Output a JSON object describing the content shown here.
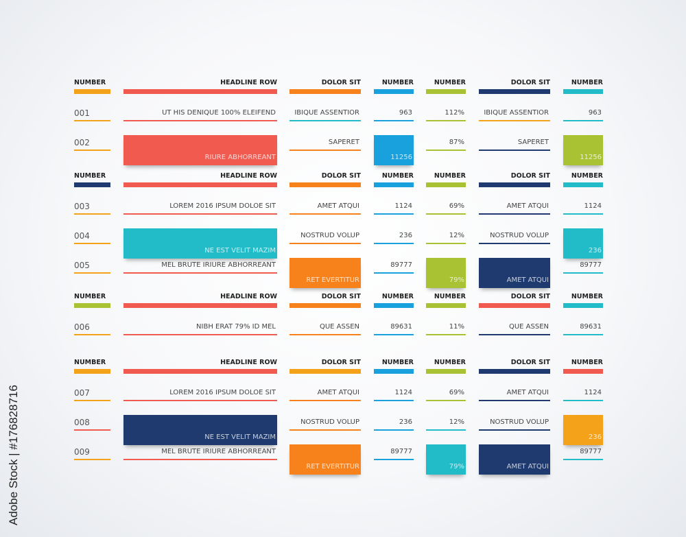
{
  "side_label": "Adobe Stock | #176828716",
  "colors": {
    "orange": "#f5a21b",
    "red": "#f05a4f",
    "blue": "#19a1dd",
    "green": "#a8c234",
    "navy": "#1e3a6e",
    "cyan": "#22bcc9",
    "deeporange": "#f7821b"
  },
  "sections": [
    {
      "headers": [
        "NUMBER",
        "HEADLINE ROW",
        "DOLOR SIT",
        "NUMBER",
        "NUMBER",
        "DOLOR SIT",
        "NUMBER"
      ],
      "header_colors": [
        "orange",
        "red",
        "deeporange",
        "blue",
        "green",
        "navy",
        "cyan"
      ],
      "rows": [
        {
          "cells": [
            "001",
            "UT HIS DENIQUE 100% ELEIFEND",
            "IBIQUE ASSENTIOR",
            "963",
            "112%",
            "IBIQUE ASSENTIOR",
            "963"
          ],
          "line_colors": [
            "orange",
            "red",
            "cyan",
            "blue",
            "green",
            "orange",
            "cyan"
          ]
        },
        {
          "cells": [
            "002",
            "RIURE ABHORREANT",
            "SAPERET",
            "11256",
            "87%",
            "SAPERET",
            "11256"
          ],
          "line_colors": [
            "orange",
            "red",
            "deeporange",
            "blue",
            "green",
            "navy",
            "green"
          ]
        }
      ]
    },
    {
      "headers": [
        "NUMBER",
        "HEADLINE ROW",
        "DOLOR SIT",
        "NUMBER",
        "NUMBER",
        "DOLOR SIT",
        "NUMBER"
      ],
      "header_colors": [
        "navy",
        "red",
        "deeporange",
        "blue",
        "green",
        "navy",
        "cyan"
      ],
      "rows": [
        {
          "cells": [
            "003",
            "LOREM 2016 IPSUM DOLOE SIT",
            "AMET ATQUI",
            "1124",
            "69%",
            "AMET ATQUI",
            "1124"
          ],
          "line_colors": [
            "orange",
            "red",
            "deeporange",
            "blue",
            "green",
            "navy",
            "cyan"
          ]
        },
        {
          "cells": [
            "004",
            "NE EST VELIT MAZIM",
            "NOSTRUD VOLUP",
            "236",
            "12%",
            "NOSTRUD VOLUP",
            "236"
          ],
          "line_colors": [
            "orange",
            "cyan",
            "deeporange",
            "blue",
            "green",
            "navy",
            "cyan"
          ]
        },
        {
          "cells": [
            "005",
            "MEL BRUTE IRIURE ABHORREANT",
            "RET EVERTITUR",
            "89777",
            "79%",
            "AMET ATQUI",
            "89777"
          ],
          "line_colors": [
            "orange",
            "red",
            "deeporange",
            "blue",
            "green",
            "navy",
            "cyan"
          ]
        }
      ]
    },
    {
      "headers": [
        "NUMBER",
        "HEADLINE ROW",
        "DOLOR SIT",
        "NUMBER",
        "NUMBER",
        "DOLOR SIT",
        "NUMBER"
      ],
      "header_colors": [
        "green",
        "red",
        "deeporange",
        "blue",
        "green",
        "red",
        "cyan"
      ],
      "rows": [
        {
          "cells": [
            "006",
            "NIBH ERAT 79% ID MEL",
            "QUE ASSEN",
            "89631",
            "11%",
            "QUE ASSEN",
            "89631"
          ],
          "line_colors": [
            "orange",
            "red",
            "deeporange",
            "blue",
            "green",
            "navy",
            "cyan"
          ]
        }
      ]
    },
    {
      "headers": [
        "NUMBER",
        "HEADLINE ROW",
        "DOLOR SIT",
        "NUMBER",
        "NUMBER",
        "DOLOR SIT",
        "NUMBER"
      ],
      "header_colors": [
        "orange",
        "red",
        "orange",
        "blue",
        "green",
        "navy",
        "red"
      ],
      "rows": [
        {
          "cells": [
            "007",
            "LOREM 2016 IPSUM DOLOE SIT",
            "AMET ATQUI",
            "1124",
            "69%",
            "AMET ATQUI",
            "1124"
          ],
          "line_colors": [
            "orange",
            "red",
            "deeporange",
            "blue",
            "green",
            "navy",
            "cyan"
          ]
        },
        {
          "cells": [
            "008",
            "NE EST VELIT MAZIM",
            "NOSTRUD VOLUP",
            "236",
            "12%",
            "NOSTRUD VOLUP",
            "236"
          ],
          "line_colors": [
            "red",
            "navy",
            "deeporange",
            "blue",
            "cyan",
            "navy",
            "orange"
          ]
        },
        {
          "cells": [
            "009",
            "MEL BRUTE IRIURE ABHORREANT",
            "RET EVERTITUR",
            "89777",
            "79%",
            "AMET ATQUI",
            "89777"
          ],
          "line_colors": [
            "orange",
            "red",
            "deeporange",
            "blue",
            "cyan",
            "navy",
            "cyan"
          ]
        }
      ]
    }
  ],
  "highlights": [
    {
      "section": 0,
      "row": 1,
      "col": 1,
      "color": "red"
    },
    {
      "section": 0,
      "row": 1,
      "col": 3,
      "color": "blue"
    },
    {
      "section": 0,
      "row": 1,
      "col": 6,
      "color": "green"
    },
    {
      "section": 1,
      "row": 1,
      "col": 1,
      "color": "cyan"
    },
    {
      "section": 1,
      "row": 1,
      "col": 6,
      "color": "cyan"
    },
    {
      "section": 1,
      "row": 2,
      "col": 2,
      "color": "deeporange"
    },
    {
      "section": 1,
      "row": 2,
      "col": 4,
      "color": "green"
    },
    {
      "section": 1,
      "row": 2,
      "col": 5,
      "color": "navy"
    },
    {
      "section": 3,
      "row": 1,
      "col": 1,
      "color": "navy"
    },
    {
      "section": 3,
      "row": 1,
      "col": 6,
      "color": "orange"
    },
    {
      "section": 3,
      "row": 2,
      "col": 2,
      "color": "deeporange"
    },
    {
      "section": 3,
      "row": 2,
      "col": 4,
      "color": "cyan"
    },
    {
      "section": 3,
      "row": 2,
      "col": 5,
      "color": "navy"
    }
  ]
}
